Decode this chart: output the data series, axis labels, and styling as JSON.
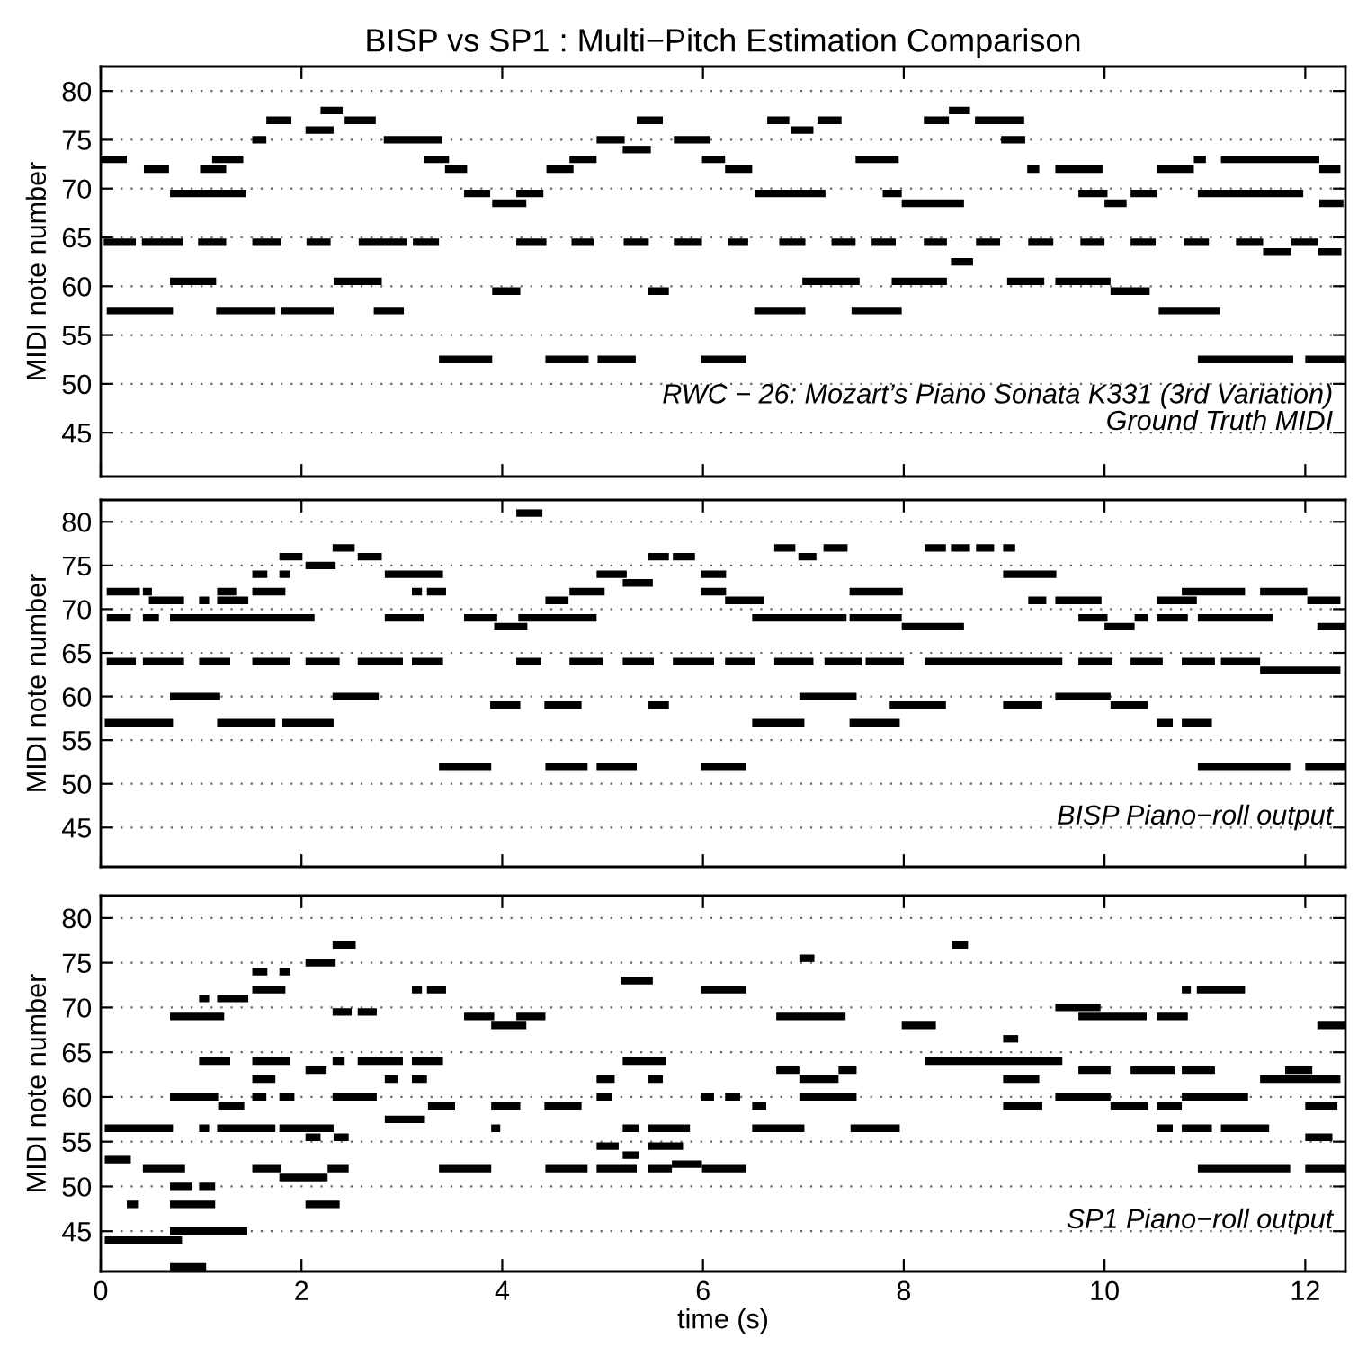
{
  "chart_data": [
    {
      "type": "line",
      "title": "BISP vs SP1 : Multi−Pitch Estimation Comparison",
      "ylabel": "MIDI note number",
      "annotations": [
        "RWC − 26: Mozart’s Piano Sonata K331 (3rd Variation)",
        "Ground Truth MIDI"
      ],
      "xlim": [
        0,
        12.4
      ],
      "ylim": [
        40.5,
        82.5
      ],
      "xticks": [
        0,
        2,
        4,
        6,
        8,
        10,
        12
      ],
      "yticks": [
        45,
        50,
        55,
        60,
        65,
        70,
        75,
        80
      ],
      "grid": "y",
      "tick_labels": "y",
      "series": [
        {
          "color": "#000000",
          "x": [
            2.19,
            2.41,
            null,
            8.45,
            8.66
          ],
          "values": [
            78,
            78,
            null,
            78,
            78
          ]
        },
        {
          "color": "#000000",
          "x": [
            1.65,
            1.9,
            null,
            2.43,
            2.74,
            null,
            5.34,
            5.6,
            null,
            6.64,
            6.86,
            null,
            7.14,
            7.38,
            null,
            8.2,
            8.45,
            null,
            8.71,
            9.2
          ],
          "values": [
            77,
            77,
            null,
            77,
            77,
            null,
            77,
            77,
            null,
            77,
            77,
            null,
            77,
            77,
            null,
            77,
            77,
            null,
            77,
            77
          ]
        },
        {
          "color": "#000000",
          "x": [
            2.04,
            2.32,
            null,
            6.88,
            7.1
          ],
          "values": [
            76,
            76,
            null,
            76,
            76
          ]
        },
        {
          "color": "#000000",
          "x": [
            1.51,
            1.65,
            null,
            2.82,
            3.4,
            null,
            4.94,
            5.22,
            null,
            5.71,
            6.07,
            null,
            8.97,
            9.21
          ],
          "values": [
            75,
            75,
            null,
            75,
            75,
            null,
            75,
            75,
            null,
            75,
            75,
            null,
            75,
            75
          ]
        },
        {
          "color": "#000000",
          "x": [
            5.2,
            5.48
          ],
          "values": [
            74,
            74
          ]
        },
        {
          "color": "#000000",
          "x": [
            0,
            0.26,
            null,
            1.11,
            1.42,
            null,
            3.22,
            3.47,
            null,
            4.67,
            4.94,
            null,
            5.99,
            6.22,
            null,
            7.52,
            7.95,
            null,
            10.89,
            11.01,
            null,
            11.16,
            12.14
          ],
          "values": [
            73,
            73,
            null,
            73,
            73,
            null,
            73,
            73,
            null,
            73,
            73,
            null,
            73,
            73,
            null,
            73,
            73,
            null,
            73,
            73,
            null,
            73,
            73
          ]
        },
        {
          "color": "#000000",
          "x": [
            0.43,
            0.68,
            null,
            0.99,
            1.25,
            null,
            3.43,
            3.65,
            null,
            4.44,
            4.71,
            null,
            6.22,
            6.49,
            null,
            9.23,
            9.35,
            null,
            9.51,
            9.98,
            null,
            10.52,
            10.89,
            null,
            12.14,
            12.35
          ],
          "values": [
            72,
            72,
            null,
            72,
            72,
            null,
            72,
            72,
            null,
            72,
            72,
            null,
            72,
            72,
            null,
            72,
            72,
            null,
            72,
            72,
            null,
            72,
            72,
            null,
            72,
            72
          ]
        },
        {
          "color": "#000000",
          "x": [
            0.69,
            1.45,
            null,
            3.62,
            3.88,
            null,
            4.14,
            4.41,
            null,
            6.52,
            7.22,
            null,
            7.79,
            7.98,
            null,
            9.74,
            10.03,
            null,
            10.26,
            10.52,
            null,
            10.93,
            11.98
          ],
          "values": [
            69.5,
            69.5,
            null,
            69.5,
            69.5,
            null,
            69.5,
            69.5,
            null,
            69.5,
            69.5,
            null,
            69.5,
            69.5,
            null,
            69.5,
            69.5,
            null,
            69.5,
            69.5,
            null,
            69.5,
            69.5
          ]
        },
        {
          "color": "#000000",
          "x": [
            3.9,
            4.24,
            null,
            7.98,
            8.6,
            null,
            10.0,
            10.22,
            null,
            12.14,
            12.38
          ],
          "values": [
            68.5,
            68.5,
            null,
            68.5,
            68.5,
            null,
            68.5,
            68.5,
            null,
            68.5,
            68.5
          ]
        },
        {
          "color": "#000000",
          "x": [
            0.03,
            0.35,
            null,
            0.41,
            0.82,
            null,
            0.97,
            1.25,
            null,
            1.51,
            1.8,
            null,
            2.05,
            2.29,
            null,
            2.57,
            3.05,
            null,
            3.11,
            3.37,
            null,
            4.14,
            4.44,
            null,
            4.69,
            4.91,
            null,
            5.21,
            5.46,
            null,
            5.71,
            5.99,
            null,
            6.25,
            6.45,
            null,
            6.76,
            7.02,
            null,
            7.28,
            7.52,
            null,
            7.68,
            7.92,
            null,
            8.2,
            8.43,
            null,
            8.72,
            8.96,
            null,
            9.24,
            9.49,
            null,
            9.76,
            10.0,
            null,
            10.26,
            10.51,
            null,
            10.79,
            11.04,
            null,
            11.31,
            11.58,
            null,
            11.86,
            12.13
          ],
          "values": [
            64.5,
            64.5,
            null,
            64.5,
            64.5,
            null,
            64.5,
            64.5,
            null,
            64.5,
            64.5,
            null,
            64.5,
            64.5,
            null,
            64.5,
            64.5,
            null,
            64.5,
            64.5,
            null,
            64.5,
            64.5,
            null,
            64.5,
            64.5,
            null,
            64.5,
            64.5,
            null,
            64.5,
            64.5,
            null,
            64.5,
            64.5,
            null,
            64.5,
            64.5,
            null,
            64.5,
            64.5,
            null,
            64.5,
            64.5,
            null,
            64.5,
            64.5,
            null,
            64.5,
            64.5,
            null,
            64.5,
            64.5,
            null,
            64.5,
            64.5,
            null,
            64.5,
            64.5,
            null,
            64.5,
            64.5,
            null,
            64.5,
            64.5,
            null,
            64.5,
            64.5
          ]
        },
        {
          "color": "#000000",
          "x": [
            11.58,
            11.86,
            null,
            12.13,
            12.36
          ],
          "values": [
            63.5,
            63.5,
            null,
            63.5,
            63.5
          ]
        },
        {
          "color": "#000000",
          "x": [
            8.47,
            8.69
          ],
          "values": [
            62.5,
            62.5
          ]
        },
        {
          "color": "#000000",
          "x": [
            0.69,
            1.15,
            null,
            2.32,
            2.8,
            null,
            6.99,
            7.56,
            null,
            7.88,
            8.43,
            null,
            9.03,
            9.4,
            null,
            9.51,
            10.06
          ],
          "values": [
            60.5,
            60.5,
            null,
            60.5,
            60.5,
            null,
            60.5,
            60.5,
            null,
            60.5,
            60.5,
            null,
            60.5,
            60.5,
            null,
            60.5,
            60.5
          ]
        },
        {
          "color": "#000000",
          "x": [
            3.9,
            4.18,
            null,
            5.45,
            5.66,
            null,
            10.06,
            10.45
          ],
          "values": [
            59.5,
            59.5,
            null,
            59.5,
            59.5,
            null,
            59.5,
            59.5
          ]
        },
        {
          "color": "#000000",
          "x": [
            0.06,
            0.72,
            null,
            1.15,
            1.74,
            null,
            1.8,
            2.32,
            null,
            2.72,
            3.02,
            null,
            6.51,
            7.02,
            null,
            7.48,
            7.98,
            null,
            10.54,
            11.15
          ],
          "values": [
            57.5,
            57.5,
            null,
            57.5,
            57.5,
            null,
            57.5,
            57.5,
            null,
            57.5,
            57.5,
            null,
            57.5,
            57.5,
            null,
            57.5,
            57.5,
            null,
            57.5,
            57.5
          ]
        },
        {
          "color": "#000000",
          "x": [
            3.37,
            3.9,
            null,
            4.43,
            4.86,
            null,
            4.95,
            5.33,
            null,
            5.98,
            6.43,
            null,
            10.93,
            11.88,
            null,
            12.0,
            12.4
          ],
          "values": [
            52.5,
            52.5,
            null,
            52.5,
            52.5,
            null,
            52.5,
            52.5,
            null,
            52.5,
            52.5,
            null,
            52.5,
            52.5,
            null,
            52.5,
            52.5
          ]
        }
      ]
    },
    {
      "type": "line",
      "ylabel": "MIDI note number",
      "annotations": [
        "BISP Piano−roll output"
      ],
      "xlim": [
        0,
        12.4
      ],
      "ylim": [
        40.5,
        82.5
      ],
      "xticks": [
        0,
        2,
        4,
        6,
        8,
        10,
        12
      ],
      "yticks": [
        45,
        50,
        55,
        60,
        65,
        70,
        75,
        80
      ],
      "grid": "y",
      "tick_labels": "y",
      "series": [
        {
          "color": "#000000",
          "x": [
            4.14,
            4.4
          ],
          "values": [
            81,
            81
          ]
        },
        {
          "color": "#000000",
          "x": [
            2.31,
            2.53,
            null,
            6.71,
            6.92,
            null,
            7.2,
            7.44,
            null,
            8.21,
            8.42,
            null,
            8.47,
            8.66,
            null,
            8.72,
            8.9,
            null,
            8.99,
            9.11
          ],
          "values": [
            77,
            77,
            null,
            77,
            77,
            null,
            77,
            77,
            null,
            77,
            77,
            null,
            77,
            77,
            null,
            77,
            77,
            null,
            77,
            77
          ]
        },
        {
          "color": "#000000",
          "x": [
            1.78,
            2.01,
            null,
            2.56,
            2.8,
            null,
            5.45,
            5.66,
            null,
            5.7,
            5.92,
            null,
            6.95,
            7.13
          ],
          "values": [
            76,
            76,
            null,
            76,
            76,
            null,
            76,
            76,
            null,
            76,
            76,
            null,
            76,
            76
          ]
        },
        {
          "color": "#000000",
          "x": [
            2.04,
            2.34
          ],
          "values": [
            75,
            75
          ]
        },
        {
          "color": "#000000",
          "x": [
            1.51,
            1.66,
            null,
            1.78,
            1.89,
            null,
            2.83,
            3.41,
            null,
            4.94,
            5.24,
            null,
            5.98,
            6.23,
            null,
            8.99,
            9.52
          ],
          "values": [
            74,
            74,
            null,
            74,
            74,
            null,
            74,
            74,
            null,
            74,
            74,
            null,
            74,
            74,
            null,
            74,
            74
          ]
        },
        {
          "color": "#000000",
          "x": [
            5.2,
            5.5
          ],
          "values": [
            73,
            73
          ]
        },
        {
          "color": "#000000",
          "x": [
            0.06,
            0.39,
            null,
            0.42,
            0.51,
            null,
            1.16,
            1.35,
            null,
            1.51,
            1.84,
            null,
            3.1,
            3.2,
            null,
            3.25,
            3.44,
            null,
            4.67,
            5.02,
            null,
            5.98,
            6.23,
            null,
            7.46,
            7.99,
            null,
            10.77,
            11.4,
            null,
            11.55,
            12.02
          ],
          "values": [
            72,
            72,
            null,
            72,
            72,
            null,
            72,
            72,
            null,
            72,
            72,
            null,
            72,
            72,
            null,
            72,
            72,
            null,
            72,
            72,
            null,
            72,
            72,
            null,
            72,
            72,
            null,
            72,
            72,
            null,
            72,
            72
          ]
        },
        {
          "color": "#000000",
          "x": [
            0.48,
            0.83,
            null,
            0.98,
            1.08,
            null,
            1.16,
            1.47,
            null,
            4.43,
            4.66,
            null,
            6.22,
            6.61,
            null,
            9.24,
            9.42,
            null,
            9.51,
            9.97,
            null,
            10.52,
            10.92,
            null,
            12.02,
            12.35
          ],
          "values": [
            71,
            71,
            null,
            71,
            71,
            null,
            71,
            71,
            null,
            71,
            71,
            null,
            71,
            71,
            null,
            71,
            71,
            null,
            71,
            71,
            null,
            71,
            71,
            null,
            71,
            71
          ]
        },
        {
          "color": "#000000",
          "x": [
            0.06,
            0.3,
            null,
            0.42,
            0.58,
            null,
            0.69,
            2.13,
            null,
            2.83,
            3.22,
            null,
            3.62,
            3.95,
            null,
            4.16,
            4.94,
            null,
            6.49,
            7.43,
            null,
            7.46,
            7.98,
            null,
            9.74,
            10.03,
            null,
            10.3,
            10.43,
            null,
            10.52,
            10.83,
            null,
            10.93,
            11.68
          ],
          "values": [
            69,
            69,
            null,
            69,
            69,
            null,
            69,
            69,
            null,
            69,
            69,
            null,
            69,
            69,
            null,
            69,
            69,
            null,
            69,
            69,
            null,
            69,
            69,
            null,
            69,
            69,
            null,
            69,
            69,
            null,
            69,
            69,
            null,
            69,
            69
          ]
        },
        {
          "color": "#000000",
          "x": [
            3.92,
            4.25,
            null,
            7.98,
            8.6,
            null,
            10.0,
            10.3,
            null,
            12.12,
            12.4
          ],
          "values": [
            68,
            68,
            null,
            68,
            68,
            null,
            68,
            68,
            null,
            68,
            68
          ]
        },
        {
          "color": "#000000",
          "x": [
            0.06,
            0.35,
            null,
            0.42,
            0.83,
            null,
            0.98,
            1.29,
            null,
            1.51,
            1.89,
            null,
            2.04,
            2.38,
            null,
            2.56,
            3.01,
            null,
            3.1,
            3.41,
            null,
            4.14,
            4.39,
            null,
            4.67,
            5.0,
            null,
            5.2,
            5.51,
            null,
            5.7,
            6.11,
            null,
            6.22,
            6.52,
            null,
            6.71,
            7.1,
            null,
            7.21,
            7.58,
            null,
            7.62,
            8.0,
            null,
            8.21,
            9.58,
            null,
            9.74,
            10.08,
            null,
            10.26,
            10.58,
            null,
            10.77,
            11.1,
            null,
            11.16,
            11.55
          ],
          "values": [
            64,
            64,
            null,
            64,
            64,
            null,
            64,
            64,
            null,
            64,
            64,
            null,
            64,
            64,
            null,
            64,
            64,
            null,
            64,
            64,
            null,
            64,
            64,
            null,
            64,
            64,
            null,
            64,
            64,
            null,
            64,
            64,
            null,
            64,
            64,
            null,
            64,
            64,
            null,
            64,
            64,
            null,
            64,
            64,
            null,
            64,
            64,
            null,
            64,
            64,
            null,
            64,
            64,
            null,
            64,
            64,
            null,
            64,
            64
          ]
        },
        {
          "color": "#000000",
          "x": [
            11.55,
            12.35
          ],
          "values": [
            63,
            63
          ]
        },
        {
          "color": "#000000",
          "x": [
            0.69,
            1.19,
            null,
            2.31,
            2.77,
            null,
            6.96,
            7.53,
            null,
            9.51,
            10.06
          ],
          "values": [
            60,
            60,
            null,
            60,
            60,
            null,
            60,
            60,
            null,
            60,
            60
          ]
        },
        {
          "color": "#000000",
          "x": [
            3.88,
            4.18,
            null,
            4.42,
            4.79,
            null,
            5.45,
            5.66,
            null,
            7.86,
            8.42,
            null,
            8.99,
            9.38,
            null,
            10.06,
            10.43
          ],
          "values": [
            59,
            59,
            null,
            59,
            59,
            null,
            59,
            59,
            null,
            59,
            59,
            null,
            59,
            59,
            null,
            59,
            59
          ]
        },
        {
          "color": "#000000",
          "x": [
            0.04,
            0.72,
            null,
            1.16,
            1.74,
            null,
            1.81,
            2.32,
            null,
            6.49,
            7.01,
            null,
            7.46,
            7.96,
            null,
            10.52,
            10.68,
            null,
            10.77,
            11.07
          ],
          "values": [
            57,
            57,
            null,
            57,
            57,
            null,
            57,
            57,
            null,
            57,
            57,
            null,
            57,
            57,
            null,
            57,
            57,
            null,
            57,
            57
          ]
        },
        {
          "color": "#000000",
          "x": [
            3.37,
            3.89,
            null,
            4.43,
            4.85,
            null,
            4.94,
            5.34,
            null,
            5.98,
            6.43,
            null,
            10.93,
            11.85,
            null,
            12.0,
            12.4
          ],
          "values": [
            52,
            52,
            null,
            52,
            52,
            null,
            52,
            52,
            null,
            52,
            52,
            null,
            52,
            52,
            null,
            52,
            52
          ]
        }
      ]
    },
    {
      "type": "line",
      "xlabel": "time (s)",
      "ylabel": "MIDI note number",
      "annotations": [
        "SP1 Piano−roll output"
      ],
      "xlim": [
        0,
        12.4
      ],
      "ylim": [
        40.5,
        82.5
      ],
      "xticks": [
        0,
        2,
        4,
        6,
        8,
        10,
        12
      ],
      "yticks": [
        45,
        50,
        55,
        60,
        65,
        70,
        75,
        80
      ],
      "grid": "y",
      "series": [
        {
          "color": "#000000",
          "x": [
            2.31,
            2.54,
            null,
            8.48,
            8.64
          ],
          "values": [
            77,
            77,
            null,
            77,
            77
          ]
        },
        {
          "color": "#000000",
          "x": [
            6.96,
            7.11
          ],
          "values": [
            75.5,
            75.5
          ]
        },
        {
          "color": "#000000",
          "x": [
            2.04,
            2.34
          ],
          "values": [
            75,
            75
          ]
        },
        {
          "color": "#000000",
          "x": [
            1.51,
            1.66,
            null,
            1.78,
            1.89
          ],
          "values": [
            74,
            74,
            null,
            74,
            74
          ]
        },
        {
          "color": "#000000",
          "x": [
            5.18,
            5.5
          ],
          "values": [
            73,
            73
          ]
        },
        {
          "color": "#000000",
          "x": [
            1.51,
            1.84,
            null,
            3.1,
            3.2,
            null,
            3.25,
            3.44,
            null,
            5.98,
            6.43,
            null,
            10.77,
            10.86,
            null,
            10.92,
            11.4
          ],
          "values": [
            72,
            72,
            null,
            72,
            72,
            null,
            72,
            72,
            null,
            72,
            72,
            null,
            72,
            72,
            null,
            72,
            72
          ]
        },
        {
          "color": "#000000",
          "x": [
            0.98,
            1.08,
            null,
            1.16,
            1.47
          ],
          "values": [
            71,
            71,
            null,
            71,
            71
          ]
        },
        {
          "color": "#000000",
          "x": [
            9.51,
            9.96
          ],
          "values": [
            70,
            70
          ]
        },
        {
          "color": "#000000",
          "x": [
            2.31,
            2.5,
            null,
            2.56,
            2.75
          ],
          "values": [
            69.5,
            69.5,
            null,
            69.5,
            69.5
          ]
        },
        {
          "color": "#000000",
          "x": [
            0.69,
            1.23,
            null,
            3.62,
            3.92,
            null,
            4.14,
            4.43,
            null,
            6.73,
            7.42,
            null,
            9.74,
            10.42,
            null,
            10.52,
            10.83
          ],
          "values": [
            69,
            69,
            null,
            69,
            69,
            null,
            69,
            69,
            null,
            69,
            69,
            null,
            69,
            69,
            null,
            69,
            69
          ]
        },
        {
          "color": "#000000",
          "x": [
            3.89,
            4.24,
            null,
            7.98,
            8.32,
            null,
            12.12,
            12.4
          ],
          "values": [
            68,
            68,
            null,
            68,
            68,
            null,
            68,
            68
          ]
        },
        {
          "color": "#000000",
          "x": [
            8.99,
            9.14
          ],
          "values": [
            66.5,
            66.5
          ]
        },
        {
          "color": "#000000",
          "x": [
            0.98,
            1.29,
            null,
            1.51,
            1.89,
            null,
            2.31,
            2.43,
            null,
            2.56,
            3.01,
            null,
            3.1,
            3.41,
            null,
            5.2,
            5.63,
            null,
            8.21,
            9.58
          ],
          "values": [
            64,
            64,
            null,
            64,
            64,
            null,
            64,
            64,
            null,
            64,
            64,
            null,
            64,
            64,
            null,
            64,
            64,
            null,
            64,
            64
          ]
        },
        {
          "color": "#000000",
          "x": [
            2.04,
            2.25,
            null,
            6.73,
            6.96,
            null,
            7.35,
            7.53,
            null,
            9.74,
            10.06,
            null,
            10.26,
            10.7,
            null,
            10.77,
            11.1,
            null,
            11.8,
            12.07
          ],
          "values": [
            63,
            63,
            null,
            63,
            63,
            null,
            63,
            63,
            null,
            63,
            63,
            null,
            63,
            63,
            null,
            63,
            63,
            null,
            63,
            63
          ]
        },
        {
          "color": "#000000",
          "x": [
            1.51,
            1.74,
            null,
            2.83,
            2.96,
            null,
            3.1,
            3.25,
            null,
            4.94,
            5.12,
            null,
            5.45,
            5.6,
            null,
            6.96,
            7.35,
            null,
            8.99,
            9.35,
            null,
            11.55,
            12.35
          ],
          "values": [
            62,
            62,
            null,
            62,
            62,
            null,
            62,
            62,
            null,
            62,
            62,
            null,
            62,
            62,
            null,
            62,
            62,
            null,
            62,
            62,
            null,
            62,
            62
          ]
        },
        {
          "color": "#000000",
          "x": [
            0.69,
            1.17,
            null,
            1.51,
            1.65,
            null,
            1.78,
            1.93,
            null,
            2.31,
            2.75,
            null,
            4.94,
            5.09,
            null,
            5.98,
            6.11,
            null,
            6.22,
            6.37,
            null,
            6.96,
            7.53,
            null,
            9.51,
            10.06,
            null,
            10.77,
            11.43
          ],
          "values": [
            60,
            60,
            null,
            60,
            60,
            null,
            60,
            60,
            null,
            60,
            60,
            null,
            60,
            60,
            null,
            60,
            60,
            null,
            60,
            60,
            null,
            60,
            60,
            null,
            60,
            60,
            null,
            60,
            60
          ]
        },
        {
          "color": "#000000",
          "x": [
            1.17,
            1.43,
            null,
            3.26,
            3.53,
            null,
            3.89,
            4.18,
            null,
            4.42,
            4.79,
            null,
            6.49,
            6.63,
            null,
            8.99,
            9.38,
            null,
            10.06,
            10.43,
            null,
            10.52,
            10.77,
            null,
            12.0,
            12.32
          ],
          "values": [
            59,
            59,
            null,
            59,
            59,
            null,
            59,
            59,
            null,
            59,
            59,
            null,
            59,
            59,
            null,
            59,
            59,
            null,
            59,
            59,
            null,
            59,
            59,
            null,
            59,
            59
          ]
        },
        {
          "color": "#000000",
          "x": [
            2.83,
            3.23
          ],
          "values": [
            57.5,
            57.5
          ]
        },
        {
          "color": "#000000",
          "x": [
            0.04,
            0.72,
            null,
            0.98,
            1.08,
            null,
            1.16,
            1.74,
            null,
            1.78,
            2.32,
            null,
            3.89,
            3.98,
            null,
            5.2,
            5.36,
            null,
            5.45,
            5.87,
            null,
            6.49,
            7.01,
            null,
            7.47,
            7.96,
            null,
            10.52,
            10.68,
            null,
            10.77,
            11.07,
            null,
            11.16,
            11.64
          ],
          "values": [
            56.5,
            56.5,
            null,
            56.5,
            56.5,
            null,
            56.5,
            56.5,
            null,
            56.5,
            56.5,
            null,
            56.5,
            56.5,
            null,
            56.5,
            56.5,
            null,
            56.5,
            56.5,
            null,
            56.5,
            56.5,
            null,
            56.5,
            56.5,
            null,
            56.5,
            56.5,
            null,
            56.5,
            56.5,
            null,
            56.5,
            56.5
          ]
        },
        {
          "color": "#000000",
          "x": [
            2.04,
            2.19,
            null,
            2.32,
            2.47,
            null,
            12.0,
            12.27
          ],
          "values": [
            55.5,
            55.5,
            null,
            55.5,
            55.5,
            null,
            55.5,
            55.5
          ]
        },
        {
          "color": "#000000",
          "x": [
            4.94,
            5.16,
            null,
            5.45,
            5.81
          ],
          "values": [
            54.5,
            54.5,
            null,
            54.5,
            54.5
          ]
        },
        {
          "color": "#000000",
          "x": [
            5.2,
            5.36
          ],
          "values": [
            53.5,
            53.5
          ]
        },
        {
          "color": "#000000",
          "x": [
            0.04,
            0.3
          ],
          "values": [
            53,
            53
          ]
        },
        {
          "color": "#000000",
          "x": [
            5.69,
            5.99
          ],
          "values": [
            52.5,
            52.5
          ]
        },
        {
          "color": "#000000",
          "x": [
            0.42,
            0.84,
            null,
            1.51,
            1.8,
            null,
            2.26,
            2.47,
            null,
            3.37,
            3.89,
            null,
            4.43,
            4.85,
            null,
            4.94,
            5.34,
            null,
            5.45,
            5.69,
            null,
            5.99,
            6.43,
            null,
            10.93,
            11.85,
            null,
            12.0,
            12.4
          ],
          "values": [
            52,
            52,
            null,
            52,
            52,
            null,
            52,
            52,
            null,
            52,
            52,
            null,
            52,
            52,
            null,
            52,
            52,
            null,
            52,
            52,
            null,
            52,
            52,
            null,
            52,
            52,
            null,
            52,
            52
          ]
        },
        {
          "color": "#000000",
          "x": [
            1.78,
            2.26
          ],
          "values": [
            51,
            51
          ]
        },
        {
          "color": "#000000",
          "x": [
            0.69,
            0.91,
            null,
            0.98,
            1.14
          ],
          "values": [
            50,
            50,
            null,
            50,
            50
          ]
        },
        {
          "color": "#000000",
          "x": [
            0.26,
            0.38,
            null,
            0.69,
            1.14,
            null,
            2.04,
            2.38
          ],
          "values": [
            48,
            48,
            null,
            48,
            48,
            null,
            48,
            48
          ]
        },
        {
          "color": "#000000",
          "x": [
            0.69,
            1.46
          ],
          "values": [
            45,
            45
          ]
        },
        {
          "color": "#000000",
          "x": [
            0.04,
            0.81
          ],
          "values": [
            44,
            44
          ]
        },
        {
          "color": "#000000",
          "x": [
            0.69,
            1.05
          ],
          "values": [
            41,
            41
          ]
        }
      ]
    }
  ]
}
